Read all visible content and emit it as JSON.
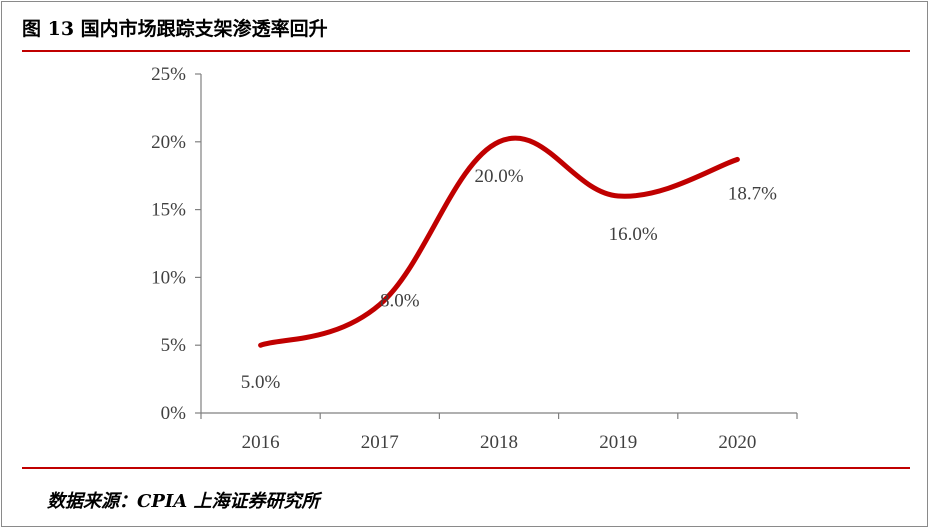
{
  "header": {
    "title": "图 13 国内市场跟踪支架渗透率回升"
  },
  "footer": {
    "source": "数据来源：CPIA 上海证券研究所"
  },
  "colors": {
    "accent_rule": "#c00000",
    "series_line": "#c00000",
    "axis": "#808080",
    "text": "#404040"
  },
  "chart_data": {
    "type": "line",
    "smooth": true,
    "title": "",
    "xlabel": "",
    "ylabel": "",
    "categories": [
      "2016",
      "2017",
      "2018",
      "2019",
      "2020"
    ],
    "series": [
      {
        "values": [
          5.0,
          8.0,
          20.0,
          16.0,
          18.7
        ]
      }
    ],
    "data_labels": [
      "5.0%",
      "8.0%",
      "20.0%",
      "16.0%",
      "18.7%"
    ],
    "y_ticks": [
      0,
      5,
      10,
      15,
      20,
      25
    ],
    "y_tick_labels": [
      "0%",
      "5%",
      "10%",
      "15%",
      "20%",
      "25%"
    ],
    "ylim": [
      0,
      25
    ],
    "grid": false,
    "legend": "none"
  }
}
